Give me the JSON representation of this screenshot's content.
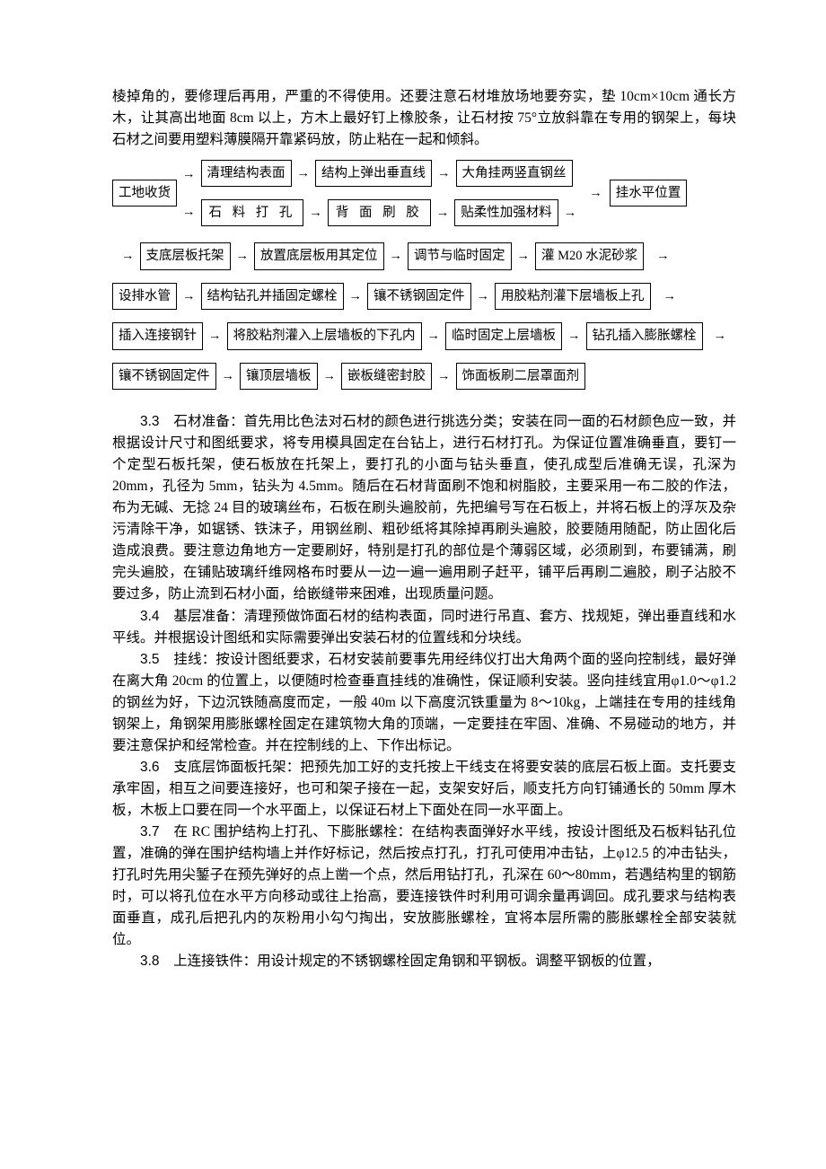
{
  "intro": "棱掉角的，要修理后再用，严重的不得使用。还要注意石材堆放场地要夯实，垫 10cm×10cm 通长方木，让其高出地面 8cm 以上，方木上最好钉上橡胶条，让石材按 75°立放斜靠在专用的钢架上，每块石材之间要用塑料薄膜隔开靠紧码放，防止粘在一起和倾斜。",
  "flow": {
    "arrow": "→",
    "row1_start": "工地收货",
    "row1a": [
      "清理结构表面",
      "结构上弹出垂直线",
      "大角挂两竖直钢丝"
    ],
    "row1b": [
      "石 料 打 孔",
      "背 面 刷 胶",
      "贴柔性加强材料"
    ],
    "row1_end": "挂水平位置",
    "row2": [
      "支底层板托架",
      "放置底层板用其定位",
      "调节与临时固定",
      "灌 M20 水泥砂浆"
    ],
    "row3": [
      "设排水管",
      "结构钻孔并插固定螺栓",
      "镶不锈钢固定件",
      "用胶粘剂灌下层墙板上孔"
    ],
    "row4": [
      "插入连接钢针",
      "将胶粘剂灌入上层墙板的下孔内",
      "临时固定上层墙板",
      "钻孔插入膨胀螺栓"
    ],
    "row5": [
      "镶不锈钢固定件",
      "镶顶层墙板",
      "嵌板缝密封胶",
      "饰面板刷二层罩面剂"
    ]
  },
  "sections": [
    {
      "num": "3.3",
      "body": "　石材准备：首先用比色法对石材的颜色进行挑选分类；安装在同一面的石材颜色应一致，并根据设计尺寸和图纸要求，将专用模具固定在台钻上，进行石材打孔。为保证位置准确垂直，要钉一个定型石板托架，使石板放在托架上，要打孔的小面与钻头垂直，使孔成型后准确无误，孔深为 20mm，孔径为 5mm，钻头为 4.5mm。随后在石材背面刷不饱和树脂胶，主要采用一布二胶的作法，布为无碱、无捻 24 目的玻璃丝布，石板在刷头遍胶前，先把编号写在石板上，并将石板上的浮灰及杂污清除干净，如锯锈、铁沫子，用钢丝刷、粗砂纸将其除掉再刷头遍胶，胶要随用随配，防止固化后造成浪费。要注意边角地方一定要刷好，特别是打孔的部位是个薄弱区域，必须刷到，布要铺满，刷完头遍胶，在铺贴玻璃纤维网格布时要从一边一遍一遍用刷子赶平，铺平后再刷二遍胶，刷子沾胶不要过多，防止流到石材小面，给嵌缝带来困难，出现质量问题。"
    },
    {
      "num": "3.4",
      "body": "　基层准备：清理预做饰面石材的结构表面，同时进行吊直、套方、找规矩，弹出垂直线和水平线。并根据设计图纸和实际需要弹出安装石材的位置线和分块线。"
    },
    {
      "num": "3.5",
      "body": "　挂线：按设计图纸要求，石材安装前要事先用经纬仪打出大角两个面的竖向控制线，最好弹在离大角 20cm 的位置上，以便随时检查垂直挂线的准确性，保证顺利安装。竖向挂线宜用φ1.0～φ1.2 的钢丝为好，下边沉铁随高度而定，一般 40m 以下高度沉铁重量为 8～10kg，上端挂在专用的挂线角钢架上，角钢架用膨胀螺栓固定在建筑物大角的顶端，一定要挂在牢固、准确、不易碰动的地方，并要注意保护和经常检查。并在控制线的上、下作出标记。"
    },
    {
      "num": "3.6",
      "body": "　支底层饰面板托架：把预先加工好的支托按上干线支在将要安装的底层石板上面。支托要支承牢固，相互之间要连接好，也可和架子接在一起，支架安好后，顺支托方向钉铺通长的 50mm 厚木板，木板上口要在同一个水平面上，以保证石材上下面处在同一水平面上。"
    },
    {
      "num": "3.7",
      "body": "　在 RC 围护结构上打孔、下膨胀螺栓：在结构表面弹好水平线，按设计图纸及石板料钻孔位置，准确的弹在围护结构墙上并作好标记，然后按点打孔，打孔可使用冲击钻，上φ12.5 的冲击钻头，打孔时先用尖錾子在预先弹好的点上凿一个点，然后用钻打孔，孔深在 60～80mm，若遇结构里的钢筋时，可以将孔位在水平方向移动或往上抬高，要连接铁件时利用可调余量再调回。成孔要求与结构表面垂直，成孔后把孔内的灰粉用小勾勺掏出，安放膨胀螺栓，宜将本层所需的膨胀螺栓全部安装就位。"
    },
    {
      "num": "3.8",
      "body": "　上连接铁件：用设计规定的不锈钢螺栓固定角钢和平钢板。调整平钢板的位置，"
    }
  ]
}
